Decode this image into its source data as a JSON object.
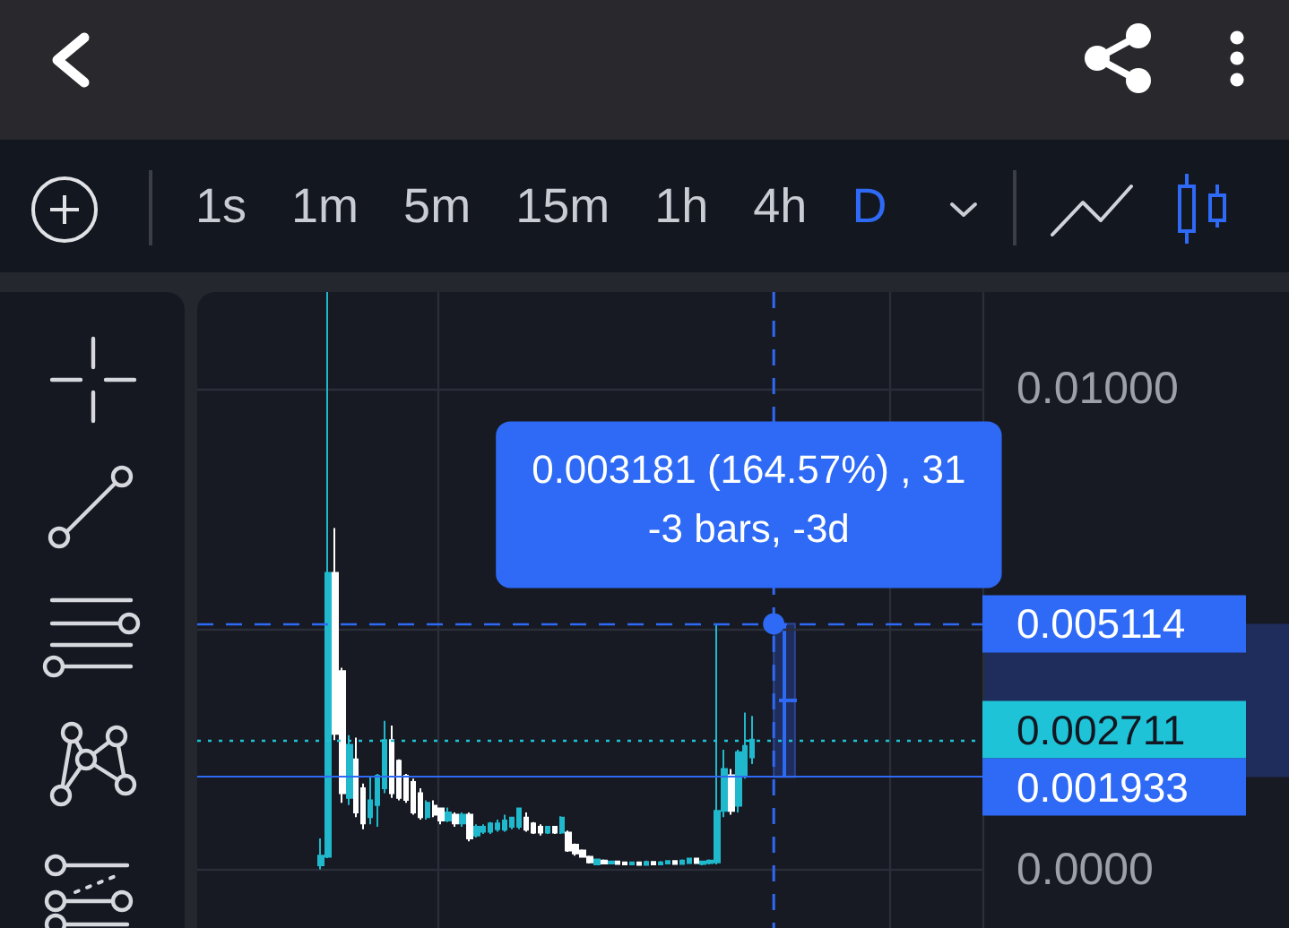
{
  "chart_data": {
    "type": "candlestick",
    "categories": [
      null,
      null,
      null,
      null,
      null,
      null,
      null,
      null,
      null,
      null,
      null,
      null,
      null,
      null,
      null,
      null,
      null,
      null,
      null,
      null,
      null,
      null,
      null,
      null,
      null,
      null,
      null,
      null,
      null,
      null,
      null,
      null,
      null,
      null,
      null,
      null,
      null,
      null,
      null,
      null,
      null,
      null,
      null,
      null,
      null,
      null,
      null,
      null,
      null,
      null,
      null,
      null,
      null,
      null,
      null,
      null,
      null,
      null,
      null,
      null,
      null,
      null,
      null,
      null,
      null,
      null,
      null,
      null,
      null,
      null,
      null,
      null,
      null,
      null,
      null,
      null,
      null,
      null,
      null,
      null,
      null,
      null,
      null,
      null,
      null,
      null,
      null,
      null,
      null,
      null,
      null,
      null,
      null,
      null,
      null,
      null,
      null,
      null,
      null,
      null,
      null,
      null,
      null,
      null,
      null,
      null,
      null,
      null,
      null,
      null,
      null
    ],
    "ohlc": [
      null,
      null,
      null,
      null,
      null,
      null,
      null,
      null,
      null,
      null,
      null,
      null,
      null,
      null,
      null,
      null,
      null,
      [
        0.0001,
        0.00066,
        2e-05,
        0.0003
      ],
      [
        0.00028,
        0.012,
        0.00025,
        0.00617
      ],
      [
        0.00617,
        0.0071,
        0.0027,
        0.00283
      ],
      [
        0.00413,
        0.0042,
        0.0014,
        0.0016
      ],
      [
        0.0015,
        0.0028,
        0.00135,
        0.0026
      ],
      [
        0.0023,
        0.00275,
        0.0011,
        0.0012
      ],
      [
        0.0017,
        0.0018,
        0.00085,
        0.00097
      ],
      [
        0.0011,
        0.00196,
        0.00095,
        0.00145
      ],
      [
        0.00135,
        0.002,
        0.0009,
        0.00196
      ],
      [
        0.0017,
        0.0031,
        0.0016,
        0.0027
      ],
      [
        0.0027,
        0.003,
        0.0015,
        0.0016
      ],
      [
        0.00227,
        0.0023,
        0.00145,
        0.0015
      ],
      [
        0.00196,
        0.002,
        0.0014,
        0.00146
      ],
      [
        0.00183,
        0.0019,
        0.00115,
        0.0012
      ],
      [
        0.0016,
        0.0017,
        0.00105,
        0.0011
      ],
      [
        0.0011,
        0.00145,
        0.00105,
        0.0014
      ],
      [
        0.00134,
        0.00145,
        0.0011,
        0.00115
      ],
      [
        0.00128,
        0.0013,
        0.00095,
        0.00103
      ],
      [
        0.00103,
        0.0013,
        0.001,
        0.0012
      ],
      [
        0.00115,
        0.0012,
        0.0009,
        0.00097
      ],
      [
        0.00097,
        0.0012,
        0.0009,
        0.00115
      ],
      [
        0.00115,
        0.0012,
        0.0006,
        0.00066
      ],
      [
        0.00072,
        0.00095,
        0.00068,
        0.0009
      ],
      [
        0.0008,
        0.00095,
        0.00075,
        0.0009
      ],
      [
        0.0008,
        0.001,
        0.00075,
        0.00097
      ],
      [
        0.00085,
        0.00105,
        0.0008,
        0.00097
      ],
      [
        0.00084,
        0.00115,
        0.0008,
        0.00103
      ],
      [
        0.0009,
        0.0011,
        0.00085,
        0.00109
      ],
      [
        0.0009,
        0.0013,
        0.00085,
        0.00128
      ],
      [
        0.00109,
        0.0012,
        0.0008,
        0.00084
      ],
      [
        0.00097,
        0.001,
        0.00075,
        0.00078
      ],
      [
        0.0009,
        0.00095,
        0.00072,
        0.00078
      ],
      [
        0.00078,
        0.00092,
        0.00075,
        0.0009
      ],
      [
        0.0009,
        0.00092,
        0.00075,
        0.00078
      ],
      [
        0.00078,
        0.00112,
        0.00075,
        0.00109
      ],
      [
        0.00078,
        0.00082,
        0.00038,
        0.00041
      ],
      [
        0.00053,
        0.00055,
        0.0003,
        0.00035
      ],
      [
        0.00041,
        0.00043,
        0.00026,
        0.00028
      ],
      [
        0.00028,
        0.0003,
        0.00014,
        0.00016
      ],
      [
        0.00012,
        0.00024,
        0.0001,
        0.00022
      ],
      [
        0.0002,
        0.00022,
        0.00012,
        0.00014
      ],
      [
        0.00014,
        0.0002,
        0.00012,
        0.00018
      ],
      [
        0.00018,
        0.0002,
        0.00012,
        0.00013
      ],
      [
        0.00016,
        0.00018,
        0.0001,
        0.00012
      ],
      [
        0.00012,
        0.00018,
        0.0001,
        0.00016
      ],
      [
        0.00016,
        0.00018,
        0.0001,
        0.00011
      ],
      [
        0.00011,
        0.0002,
        0.0001,
        0.00017
      ],
      [
        0.00017,
        0.00019,
        0.0001,
        0.00012
      ],
      [
        0.00012,
        0.00019,
        0.0001,
        0.00016
      ],
      [
        0.00014,
        0.00021,
        0.00012,
        0.00019
      ],
      [
        0.00019,
        0.00021,
        0.00012,
        0.00013
      ],
      [
        0.00013,
        0.00022,
        0.00012,
        0.0002
      ],
      [
        0.00015,
        0.00026,
        0.00014,
        0.00024
      ],
      [
        0.00024,
        0.00025,
        0.00014,
        0.00015
      ],
      [
        0.00013,
        0.0002,
        0.0001,
        0.00018
      ],
      [
        0.00015,
        0.00022,
        0.00012,
        0.0002
      ],
      [
        0.00016,
        0.005114,
        0.00012,
        0.00123
      ],
      [
        0.00123,
        0.0025,
        0.0011,
        0.0021
      ],
      [
        0.00197,
        0.0021,
        0.00115,
        0.00123
      ],
      [
        0.00134,
        0.0025,
        0.0012,
        0.00245
      ],
      [
        0.00197,
        0.00327,
        0.0019,
        0.00258
      ],
      [
        0.00234,
        0.0032,
        0.0022,
        0.002711
      ],
      null,
      null,
      null,
      null,
      null,
      null,
      null,
      null,
      null,
      null,
      null,
      null,
      null,
      null,
      null,
      null,
      null,
      null,
      null,
      null,
      null,
      null,
      null,
      null,
      null,
      null,
      null,
      null,
      null,
      null,
      null,
      null
    ],
    "colors": [
      null,
      null,
      null,
      null,
      null,
      null,
      null,
      null,
      null,
      null,
      null,
      null,
      null,
      null,
      null,
      null,
      null,
      "#20b8cc",
      "#20b8cc",
      "#ffffff",
      "#ffffff",
      "#20b8cc",
      "#ffffff",
      "#ffffff",
      "#20b8cc",
      "#20b8cc",
      "#20b8cc",
      "#ffffff",
      "#ffffff",
      "#ffffff",
      "#ffffff",
      "#ffffff",
      "#20b8cc",
      "#ffffff",
      "#ffffff",
      "#20b8cc",
      "#ffffff",
      "#20b8cc",
      "#ffffff",
      "#20b8cc",
      "#20b8cc",
      "#20b8cc",
      "#20b8cc",
      "#20b8cc",
      "#20b8cc",
      "#20b8cc",
      "#ffffff",
      "#ffffff",
      "#ffffff",
      "#20b8cc",
      "#ffffff",
      "#20b8cc",
      "#ffffff",
      "#ffffff",
      "#ffffff",
      "#ffffff",
      "#20b8cc",
      "#ffffff",
      "#20b8cc",
      "#ffffff",
      "#ffffff",
      "#20b8cc",
      "#ffffff",
      "#20b8cc",
      "#ffffff",
      "#20b8cc",
      "#20b8cc",
      "#ffffff",
      "#20b8cc",
      "#20b8cc",
      "#ffffff",
      "#20b8cc",
      "#20b8cc",
      "#20b8cc",
      "#20b8cc",
      "#ffffff",
      "#20b8cc",
      "#20b8cc",
      "#20b8cc",
      null,
      null,
      null,
      null,
      null,
      null,
      null,
      null,
      null,
      null,
      null,
      null,
      null,
      null,
      null,
      null,
      null,
      null,
      null,
      null,
      null,
      null,
      null,
      null,
      null,
      null,
      null,
      null,
      null,
      null,
      null,
      null
    ],
    "ylim": [
      -0.0012,
      0.012
    ],
    "yticks": [
      {
        "value": 0,
        "label": "0.0000"
      },
      {
        "value": 0.005,
        "label": null
      },
      {
        "value": 0.01,
        "label": "0.01000"
      }
    ],
    "grid": true,
    "tick_labels": "y",
    "ref_lines": [
      {
        "axis": "y",
        "value": 0.005114,
        "label": "0.005114",
        "color": "#2e6af5",
        "line_style": "dashed"
      },
      {
        "axis": "y",
        "value": 0.002711,
        "label": "0.002711",
        "color": "#1fc3d7",
        "line_style": "dotted"
      },
      {
        "axis": "y",
        "value": 0.001933,
        "label": "0.001933",
        "color": "#2e6af5",
        "line_style": "solid"
      }
    ],
    "annotations": [
      "1s",
      "1m",
      "5m",
      "15m",
      "1h",
      "4h",
      "D",
      "0.003181 (164.57%) , 31",
      "-3 bars, -3d"
    ]
  }
}
